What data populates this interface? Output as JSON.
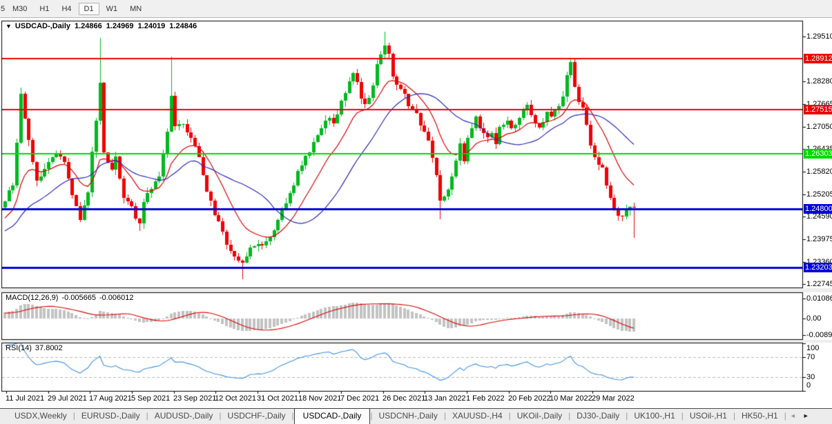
{
  "toolbar": {
    "timeframes": [
      "5",
      "M30",
      "H1",
      "H4",
      "D1",
      "W1",
      "MN"
    ],
    "active_timeframe": "D1"
  },
  "chart": {
    "symbol_label": "USDCAD-,Daily",
    "ohlc": {
      "open": "1.24866",
      "high": "1.24969",
      "low": "1.24019",
      "close": "1.24846"
    },
    "price_scale": [
      "1.29510",
      "1.28280",
      "1.27665",
      "1.27050",
      "1.26435",
      "1.25820",
      "1.25205",
      "1.24590",
      "1.23975",
      "1.23360",
      "1.22745"
    ],
    "hlines": [
      {
        "price": 1.28912,
        "label": "1.28912",
        "color": "#ee0000",
        "width": 2
      },
      {
        "price": 1.27515,
        "label": "1.27515",
        "color": "#ee0000",
        "width": 2
      },
      {
        "price": 1.26303,
        "label": "1.26303",
        "color": "#00d800",
        "width": 2
      },
      {
        "price": 1.248,
        "label": "1.24800",
        "color": "#0000d8",
        "width": 3
      },
      {
        "price": 1.23203,
        "label": "1.23203",
        "color": "#0000d8",
        "width": 3
      }
    ]
  },
  "macd": {
    "label": "MACD(12,26,9)",
    "value_main": "-0.005665",
    "value_signal": "-0.006012",
    "scale": [
      "0.010869",
      "0.00",
      "-0.008974"
    ]
  },
  "rsi": {
    "label": "RSI(14)",
    "value": "37.8002",
    "scale": [
      "100",
      "70",
      "30",
      "0"
    ],
    "levels": [
      70,
      30
    ]
  },
  "x_axis": {
    "dates": [
      "11 Jul 2021",
      "29 Jul 2021",
      "17 Aug 2021",
      "5 Sep 2021",
      "23 Sep 2021",
      "12 Oct 2021",
      "31 Oct 2021",
      "18 Nov 2021",
      "7 Dec 2021",
      "26 Dec 2021",
      "13 Jan 2022",
      "1 Feb 2022",
      "20 Feb 2022",
      "10 Mar 2022",
      "29 Mar 2022"
    ]
  },
  "tabs": {
    "items": [
      "USDX,Weekly",
      "EURUSD-,Daily",
      "AUDUSD-,Daily",
      "USDCHF-,Daily",
      "USDCAD-,Daily",
      "USDCNH-,Daily",
      "XAUUSD-,H4",
      "UKOil-,Daily",
      "DJ30-,Daily",
      "UK100-,H1",
      "USOil-,H1",
      "HK50-,H1"
    ],
    "active_index": 4,
    "scroll_left": "◄",
    "scroll_right": "►"
  },
  "colors": {
    "bull_candle": "#00b91e",
    "bear_candle": "#f00000",
    "ma_fast": "#dd0000",
    "ma_slow": "#2828b4",
    "macd_histogram": "#c2c2c2",
    "macd_signal": "#dd0000",
    "rsi_line": "#3e91e0",
    "rsi_level_dash": "#bbbbbb",
    "panel_border": "#000000",
    "badge_text": "#ffffff"
  },
  "chart_data": {
    "type": "candlestick",
    "symbol": "USDCAD",
    "timeframe": "Daily",
    "ylim": [
      1.2245,
      1.2995
    ],
    "bars_visible": 160,
    "prehistory_bars": 50,
    "indicators": [
      "MACD(12,26,9)",
      "RSI(14)"
    ],
    "moving_averages": [
      {
        "period": 13,
        "style": "fast-red"
      },
      {
        "period": 26,
        "style": "slow-blue"
      }
    ],
    "price_anchors": [
      [
        -50,
        1.227
      ],
      [
        -40,
        1.2302
      ],
      [
        -30,
        1.2348
      ],
      [
        -20,
        1.2382
      ],
      [
        -10,
        1.2422
      ],
      [
        -5,
        1.2455
      ],
      [
        0,
        1.2498
      ],
      [
        2,
        1.2552
      ],
      [
        4,
        1.2788
      ],
      [
        6,
        1.2661
      ],
      [
        8,
        1.2552
      ],
      [
        10,
        1.2589
      ],
      [
        13,
        1.2625
      ],
      [
        15,
        1.2616
      ],
      [
        17,
        1.2516
      ],
      [
        19,
        1.2444
      ],
      [
        21,
        1.2534
      ],
      [
        24,
        1.2825
      ],
      [
        25,
        1.2625
      ],
      [
        27,
        1.258
      ],
      [
        28,
        1.2616
      ],
      [
        30,
        1.2516
      ],
      [
        32,
        1.248
      ],
      [
        34,
        1.2444
      ],
      [
        35,
        1.2498
      ],
      [
        37,
        1.2534
      ],
      [
        39,
        1.257
      ],
      [
        41,
        1.27
      ],
      [
        42,
        1.278
      ],
      [
        43,
        1.2715
      ],
      [
        45,
        1.2706
      ],
      [
        47,
        1.2679
      ],
      [
        49,
        1.2625
      ],
      [
        50,
        1.257
      ],
      [
        52,
        1.2498
      ],
      [
        54,
        1.2444
      ],
      [
        56,
        1.2389
      ],
      [
        58,
        1.2353
      ],
      [
        60,
        1.2326
      ],
      [
        62,
        1.2371
      ],
      [
        64,
        1.238
      ],
      [
        66,
        1.2398
      ],
      [
        68,
        1.2426
      ],
      [
        69,
        1.2444
      ],
      [
        71,
        1.2498
      ],
      [
        73,
        1.2552
      ],
      [
        75,
        1.2598
      ],
      [
        76,
        1.2625
      ],
      [
        78,
        1.2661
      ],
      [
        80,
        1.2706
      ],
      [
        82,
        1.2733
      ],
      [
        83,
        1.2715
      ],
      [
        85,
        1.277
      ],
      [
        87,
        1.2824
      ],
      [
        88,
        1.286
      ],
      [
        90,
        1.2788
      ],
      [
        91,
        1.2761
      ],
      [
        93,
        1.2824
      ],
      [
        94,
        1.2878
      ],
      [
        96,
        1.2933
      ],
      [
        97,
        1.2905
      ],
      [
        98,
        1.2842
      ],
      [
        100,
        1.2806
      ],
      [
        102,
        1.277
      ],
      [
        104,
        1.2733
      ],
      [
        105,
        1.2715
      ],
      [
        107,
        1.2661
      ],
      [
        109,
        1.257
      ],
      [
        110,
        1.2498
      ],
      [
        112,
        1.2534
      ],
      [
        114,
        1.2607
      ],
      [
        115,
        1.2652
      ],
      [
        116,
        1.2616
      ],
      [
        117,
        1.2679
      ],
      [
        119,
        1.2733
      ],
      [
        120,
        1.2706
      ],
      [
        121,
        1.2679
      ],
      [
        123,
        1.2688
      ],
      [
        124,
        1.2661
      ],
      [
        125,
        1.2706
      ],
      [
        127,
        1.2724
      ],
      [
        128,
        1.2697
      ],
      [
        129,
        1.2715
      ],
      [
        131,
        1.2742
      ],
      [
        132,
        1.2761
      ],
      [
        133,
        1.2733
      ],
      [
        135,
        1.2706
      ],
      [
        136,
        1.2724
      ],
      [
        137,
        1.2751
      ],
      [
        138,
        1.2733
      ],
      [
        140,
        1.2761
      ],
      [
        141,
        1.2788
      ],
      [
        142,
        1.2842
      ],
      [
        143,
        1.2878
      ],
      [
        144,
        1.2806
      ],
      [
        146,
        1.2751
      ],
      [
        147,
        1.2706
      ],
      [
        148,
        1.2661
      ],
      [
        149,
        1.2625
      ],
      [
        151,
        1.2589
      ],
      [
        152,
        1.2552
      ],
      [
        153,
        1.2516
      ],
      [
        154,
        1.248
      ],
      [
        156,
        1.2462
      ],
      [
        157,
        1.2468
      ],
      [
        158,
        1.24866
      ],
      [
        159,
        1.24846
      ]
    ],
    "wick_overrides": [
      {
        "bar": 4,
        "high": 1.2812
      },
      {
        "bar": 24,
        "high": 1.2948
      },
      {
        "bar": 34,
        "low": 1.242
      },
      {
        "bar": 42,
        "high": 1.2896
      },
      {
        "bar": 60,
        "low": 1.2289
      },
      {
        "bar": 96,
        "high": 1.2964
      },
      {
        "bar": 110,
        "low": 1.2452
      },
      {
        "bar": 143,
        "high": 1.289
      },
      {
        "bar": 159,
        "high": 1.24969,
        "low": 1.24019
      }
    ]
  }
}
